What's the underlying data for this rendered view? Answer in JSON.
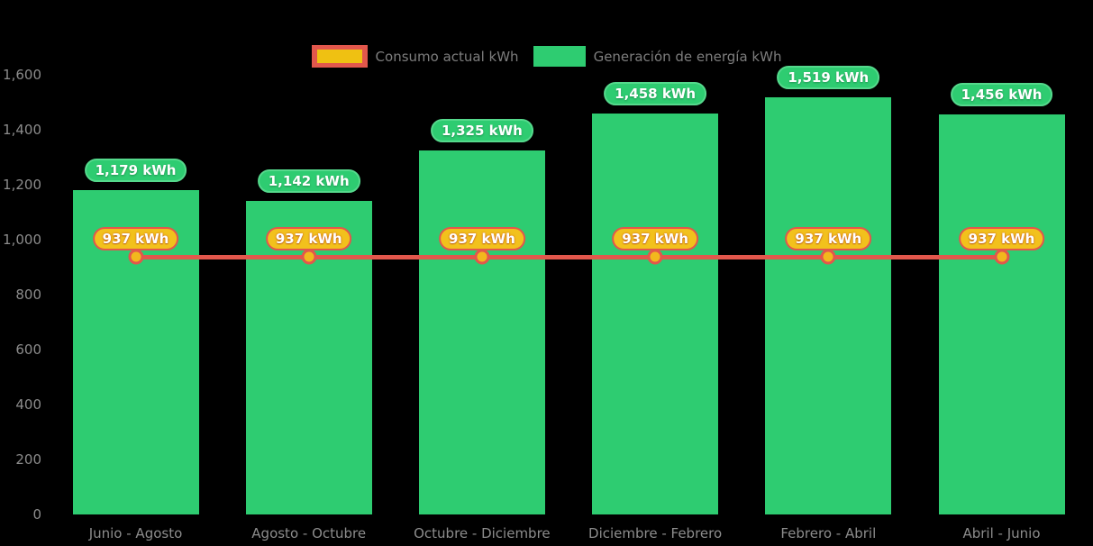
{
  "chart_data": {
    "type": "bar",
    "title": "",
    "xlabel": "",
    "ylabel": "",
    "categories": [
      "Junio - Agosto",
      "Agosto - Octubre",
      "Octubre - Diciembre",
      "Diciembre - Febrero",
      "Febrero - Abril",
      "Abril - Junio"
    ],
    "series": [
      {
        "name": "Generación de energía kWh",
        "type": "bar",
        "color": "#2ecc71",
        "values": [
          1179,
          1142,
          1325,
          1458,
          1519,
          1456
        ],
        "data_labels": [
          "1,179 kWh",
          "1,142 kWh",
          "1,325 kWh",
          "1,458 kWh",
          "1,519 kWh",
          "1,456 kWh"
        ]
      },
      {
        "name": "Consumo actual kWh",
        "type": "line",
        "color": "#e2574c",
        "marker_color": "#f2b81d",
        "values": [
          937,
          937,
          937,
          937,
          937,
          937
        ],
        "data_labels": [
          "937 kWh",
          "937 kWh",
          "937 kWh",
          "937 kWh",
          "937 kWh",
          "937 kWh"
        ]
      }
    ],
    "ylim": [
      0,
      1600
    ],
    "ytick_values": [
      0,
      200,
      400,
      600,
      800,
      1000,
      1200,
      1400,
      1600
    ],
    "ytick_labels": [
      "0",
      "200",
      "400",
      "600",
      "800",
      "1,000",
      "1,200",
      "1,400",
      "1,600"
    ],
    "legend_position": "top",
    "grid": false
  },
  "legend": {
    "items": [
      {
        "label": "Consumo actual kWh",
        "swatch": "line-marker",
        "outer_color": "#e2574c",
        "inner_color": "#efc112"
      },
      {
        "label": "Generación de energía kWh",
        "swatch": "bar",
        "color": "#2ecc71"
      }
    ]
  },
  "colors": {
    "background": "#000000",
    "axis_text": "#8c8c8c",
    "legend_text": "#7d7d7d",
    "bar": "#2ecc71",
    "bar_badge_border": "#55d98c",
    "line": "#e2574c",
    "marker_fill": "#f2b81d",
    "value_badge_fill": "#f2c11c",
    "badge_text": "#ffffff"
  }
}
